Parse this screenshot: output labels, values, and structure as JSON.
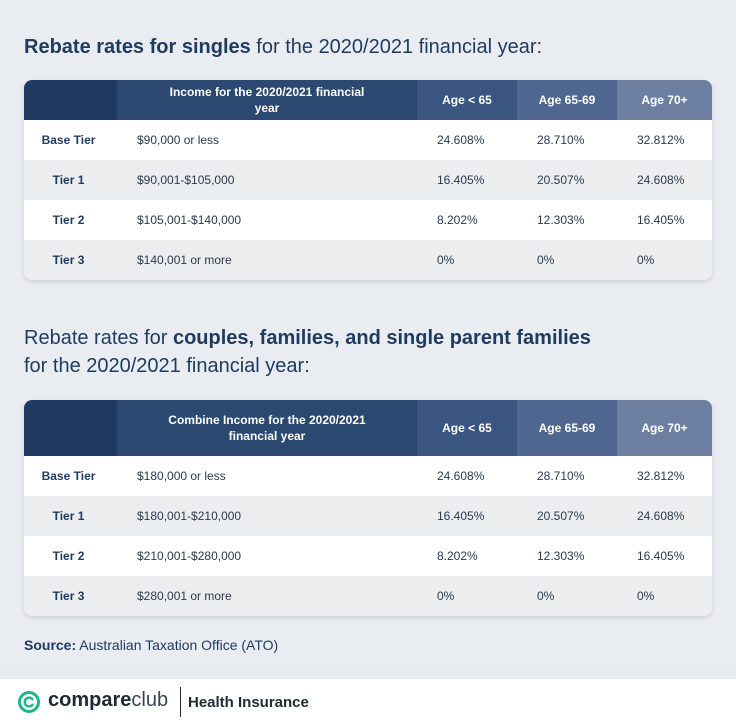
{
  "singles": {
    "title_bold": "Rebate rates for singles",
    "title_rest": " for the 2020/2021 financial year:",
    "headers": [
      "",
      "Income for the 2020/2021 financial year",
      "Age < 65",
      "Age 65-69",
      "Age 70+"
    ],
    "rows": [
      [
        "Base Tier",
        "$90,000 or less",
        "24.608%",
        "28.710%",
        "32.812%"
      ],
      [
        "Tier 1",
        "$90,001-$105,000",
        "16.405%",
        "20.507%",
        "24.608%"
      ],
      [
        "Tier 2",
        "$105,001-$140,000",
        "8.202%",
        "12.303%",
        "16.405%"
      ],
      [
        "Tier 3",
        "$140,001 or more",
        "0%",
        "0%",
        "0%"
      ]
    ]
  },
  "couples": {
    "title_lead": "Rebate rates for ",
    "title_bold": "couples, families, and single parent families",
    "title_line2": "for the 2020/2021 financial year:",
    "headers": [
      "",
      "Combine Income for the 2020/2021 financial year",
      "Age < 65",
      "Age 65-69",
      "Age 70+"
    ],
    "rows": [
      [
        "Base Tier",
        "$180,000 or less",
        "24.608%",
        "28.710%",
        "32.812%"
      ],
      [
        "Tier 1",
        "$180,001-$210,000",
        "16.405%",
        "20.507%",
        "24.608%"
      ],
      [
        "Tier 2",
        "$210,001-$280,000",
        "8.202%",
        "12.303%",
        "16.405%"
      ],
      [
        "Tier 3",
        "$280,001 or more",
        "0%",
        "0%",
        "0%"
      ]
    ]
  },
  "source": {
    "label": "Source:",
    "text": " Australian Taxation Office (ATO)"
  },
  "footer": {
    "brand_bold": "compare",
    "brand_light": "club",
    "product": "Health Insurance",
    "logo_icon": "compareclub-logo-icon",
    "brand_color": "#1fb584"
  },
  "colors": {
    "header_dark": "#203a62",
    "header_mid": "#2a4870",
    "header_age1": "#3a5580",
    "header_age2": "#4f6690",
    "header_age3": "#6d7fa1"
  }
}
